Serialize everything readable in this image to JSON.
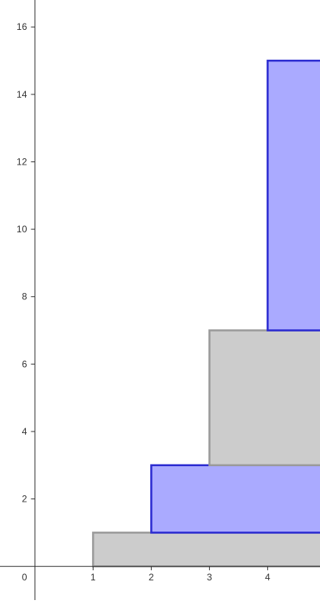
{
  "chart_data": {
    "type": "bar",
    "title": "",
    "xlabel": "",
    "ylabel": "",
    "grid": false,
    "xlim": [
      -0.6,
      4.9
    ],
    "ylim": [
      -1,
      16.8
    ],
    "x_ticks": [
      1,
      2,
      3,
      4
    ],
    "y_ticks": [
      2,
      4,
      6,
      8,
      10,
      12,
      14,
      16
    ],
    "origin_label": "0",
    "colors": {
      "blue_fill": "#aaaaff",
      "blue_stroke": "#2b2bd1",
      "gray_fill": "#cccccc",
      "gray_stroke": "#9a9a9a",
      "axis": "#333333"
    },
    "bars": [
      {
        "x_start": 1,
        "x_end": 5,
        "y_start": 0,
        "y_end": 1,
        "color": "gray"
      },
      {
        "x_start": 2,
        "x_end": 5,
        "y_start": 1,
        "y_end": 3,
        "color": "blue"
      },
      {
        "x_start": 3,
        "x_end": 5,
        "y_start": 3,
        "y_end": 7,
        "color": "gray"
      },
      {
        "x_start": 4,
        "x_end": 5,
        "y_start": 7,
        "y_end": 15,
        "color": "blue"
      }
    ]
  }
}
